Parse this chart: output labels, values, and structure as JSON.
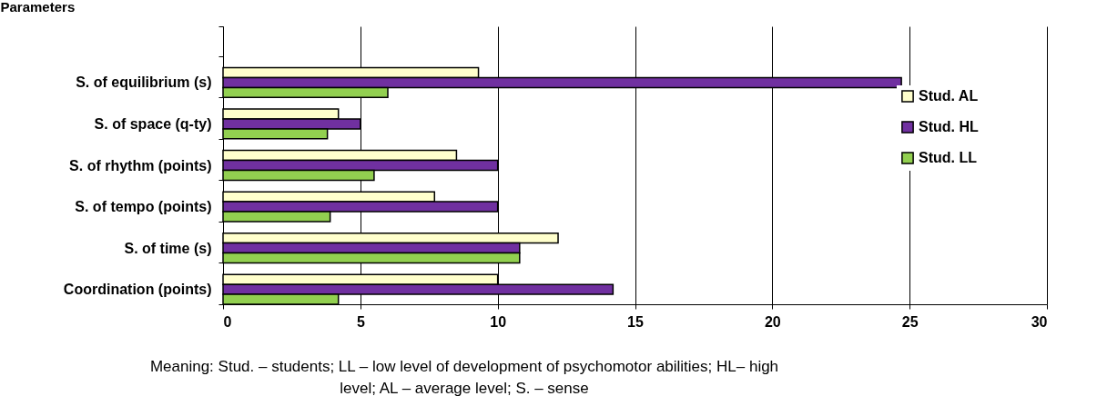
{
  "chart_data": {
    "type": "bar",
    "orientation": "horizontal",
    "ylabel": "Parameters",
    "categories": [
      null,
      "S. of equilibrium (s)",
      "S. of space (q-ty)",
      "S. of rhythm (points)",
      "S. of tempo (points)",
      "S. of time (s)",
      "Coordination (points)"
    ],
    "series": [
      {
        "name": "Stud. AL",
        "color": "#ffffcc",
        "values": [
          null,
          9.3,
          4.2,
          8.5,
          7.7,
          12.2,
          10
        ]
      },
      {
        "name": "Stud. HL",
        "color": "#7030a0",
        "values": [
          null,
          24.7,
          5,
          10,
          10,
          10.8,
          14.2
        ]
      },
      {
        "name": "Stud. LL",
        "color": "#92d050",
        "values": [
          null,
          6,
          3.8,
          5.5,
          3.9,
          10.8,
          4.2
        ]
      }
    ],
    "xlim": [
      0,
      30
    ],
    "xticks": [
      0,
      5,
      10,
      15,
      20,
      25,
      30
    ],
    "grid": "x",
    "legend": "right",
    "annotations": [
      "Meaning: Stud. – students; LL – low level of development of psychomotor abilities; HL– high level; AL – average level; S. – sense"
    ]
  }
}
